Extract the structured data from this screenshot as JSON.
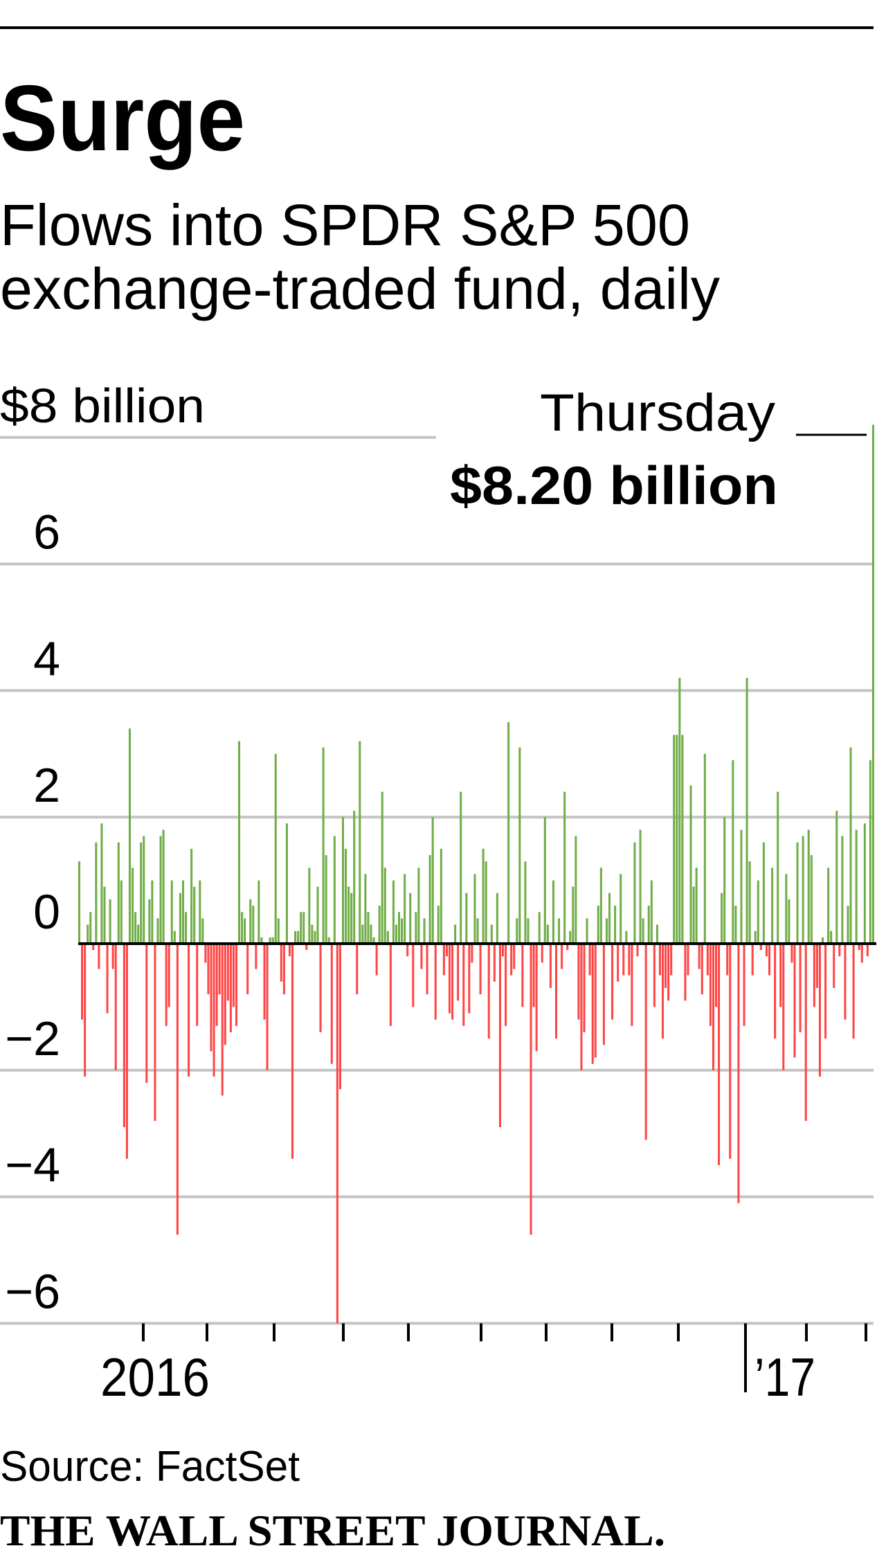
{
  "header": {
    "title": "Surge",
    "subtitle_line1": "Flows into SPDR S&P 500",
    "subtitle_line2": "exchange-traded fund, daily"
  },
  "annotation": {
    "day": "Thursday",
    "value": "$8.20 billion"
  },
  "footer": {
    "source": "Source: FactSet",
    "logo": "THE WALL STREET JOURNAL."
  },
  "colors": {
    "positive": "#70ad47",
    "negative": "#ff4646",
    "grid": "#c4c4c4",
    "axis": "#000000"
  },
  "chart_data": {
    "type": "bar",
    "title": "Surge",
    "subtitle": "Flows into SPDR S&P 500 exchange-traded fund, daily",
    "ylabel": "$ billion",
    "unit_label": "$8 billion",
    "ylim": [
      -6,
      8
    ],
    "yticks": [
      8,
      6,
      4,
      2,
      0,
      -2,
      -4,
      -6
    ],
    "ytick_labels": [
      "$8 billion",
      "6",
      "4",
      "2",
      "0",
      "−2",
      "−4",
      "−6"
    ],
    "xtick_labels": [
      {
        "label": "2016",
        "month_index": 1
      },
      {
        "label": "’17",
        "month_index": 13
      }
    ],
    "month_tick_count": 12,
    "grid": true,
    "annotation": {
      "text": "Thursday $8.20 billion",
      "value": 8.2,
      "position": "last bar"
    },
    "values": [
      1.3,
      -1.2,
      -2.1,
      0.3,
      0.5,
      -0.1,
      1.6,
      -0.4,
      1.9,
      0.9,
      -1.1,
      0.7,
      -0.4,
      -2.0,
      1.6,
      1.0,
      -2.9,
      -3.4,
      3.4,
      1.2,
      0.5,
      0.3,
      1.6,
      1.7,
      -2.2,
      0.7,
      1.0,
      -2.8,
      0.4,
      1.7,
      1.8,
      -1.3,
      -1.0,
      1.0,
      0.2,
      -4.6,
      0.8,
      1.0,
      0.5,
      -2.1,
      1.5,
      0.9,
      -1.3,
      1.0,
      0.4,
      -0.3,
      -0.8,
      -1.7,
      -2.1,
      -1.3,
      -0.8,
      -2.4,
      -1.6,
      -0.9,
      -1.4,
      -1.0,
      -1.3,
      3.2,
      0.5,
      0.4,
      -0.8,
      0.7,
      0.6,
      -0.4,
      1.0,
      0.1,
      -1.2,
      -2.0,
      0.1,
      0.1,
      3.0,
      0.4,
      -0.6,
      -0.8,
      1.9,
      -0.2,
      -3.4,
      0.2,
      0.2,
      0.5,
      0.5,
      -0.1,
      1.2,
      0.3,
      0.2,
      0.9,
      -1.4,
      3.1,
      1.4,
      0.1,
      -1.9,
      1.7,
      -6.0,
      -2.3,
      2.0,
      1.5,
      0.9,
      0.8,
      2.1,
      -0.8,
      3.2,
      0.3,
      1.1,
      0.5,
      0.3,
      0.1,
      -0.5,
      0.6,
      2.4,
      1.2,
      0.2,
      -1.3,
      1.0,
      0.3,
      0.5,
      0.4,
      1.1,
      -0.2,
      0.8,
      -1.0,
      0.5,
      1.2,
      -0.4,
      0.4,
      -0.8,
      1.4,
      2.0,
      -1.2,
      0.6,
      1.5,
      -0.5,
      -0.2,
      -1.1,
      -1.2,
      0.3,
      -0.9,
      2.4,
      -1.3,
      0.8,
      -1.1,
      -0.3,
      1.1,
      0.4,
      -0.8,
      1.5,
      1.3,
      -1.5,
      0.3,
      -0.6,
      0.8,
      -2.9,
      -0.2,
      -1.3,
      3.5,
      -0.5,
      -0.4,
      0.4,
      3.1,
      -1.0,
      1.3,
      0.4,
      -4.6,
      -1.0,
      -1.7,
      0.5,
      -0.3,
      2.0,
      0.3,
      -0.7,
      1.0,
      -1.5,
      0.4,
      -0.4,
      2.4,
      -0.1,
      0.2,
      0.9,
      1.7,
      -1.2,
      -2.0,
      -1.4,
      0.4,
      -0.5,
      -1.9,
      -1.8,
      0.6,
      1.2,
      -1.6,
      0.4,
      0.8,
      -1.2,
      0.6,
      -0.6,
      1.1,
      -0.5,
      0.2,
      -0.5,
      -1.3,
      1.6,
      -0.2,
      1.8,
      0.4,
      -3.1,
      0.6,
      1.0,
      -1.0,
      0.3,
      -0.5,
      -1.5,
      -0.7,
      -0.9,
      -0.5,
      3.3,
      3.3,
      4.2,
      3.3,
      -0.9,
      -0.5,
      2.5,
      0.9,
      1.2,
      -0.4,
      -0.8,
      3.0,
      -0.5,
      -1.3,
      -2.0,
      -1.0,
      -3.5,
      0.8,
      2.0,
      -0.5,
      -3.4,
      2.9,
      0.6,
      -4.1,
      1.8,
      -1.3,
      4.2,
      1.3,
      -0.5,
      0.2,
      1.0,
      -0.1,
      1.6,
      -0.2,
      -0.5,
      1.2,
      -1.5,
      2.4,
      -1.0,
      -2.0,
      1.1,
      0.7,
      -0.3,
      -1.8,
      1.6,
      -1.4,
      1.7,
      -2.8,
      1.8,
      1.4,
      -1.0,
      -0.7,
      -2.1,
      0.1,
      -1.5,
      1.2,
      0.2,
      -0.7,
      2.1,
      -0.2,
      1.7,
      -1.2,
      0.6,
      3.1,
      -1.5,
      1.8,
      -0.1,
      -0.3,
      1.9,
      -0.2,
      2.9,
      8.2
    ]
  }
}
